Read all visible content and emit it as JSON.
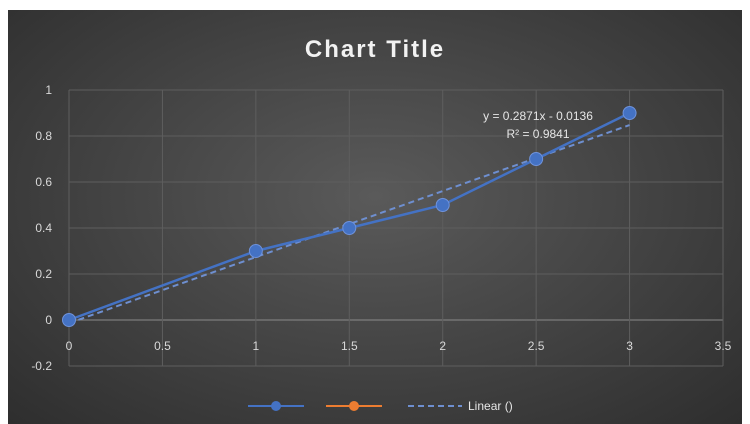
{
  "chart_data": {
    "type": "scatter",
    "title": "Chart Title",
    "xlim": [
      0,
      3.5
    ],
    "ylim": [
      -0.2,
      1
    ],
    "x_ticks": [
      "0",
      "0.5",
      "1",
      "1.5",
      "2",
      "2.5",
      "3",
      "3.5"
    ],
    "y_ticks": [
      "1",
      "0.8",
      "0.6",
      "0.4",
      "0.2",
      "0",
      "-0.2"
    ],
    "grid": true,
    "series": [
      {
        "x": [
          0,
          1,
          1.5,
          2,
          2.5,
          3
        ],
        "y": [
          0,
          0.3,
          0.4,
          0.5,
          0.7,
          0.9
        ],
        "color": "#4472c4",
        "marker": "circle",
        "line": "solid"
      },
      {
        "x": [],
        "y": [],
        "color": "#ed7d31",
        "marker": "circle",
        "line": "solid"
      }
    ],
    "trendline": {
      "type": "linear",
      "slope": 0.2871,
      "intercept": -0.0136,
      "color": "#4472c4",
      "line": "dashed",
      "equation_label": "y = 0.2871x  - 0.0136",
      "r2_label": "R² = 0.9841"
    },
    "legend": {
      "position": "bottom",
      "entries": [
        {
          "label": "",
          "color": "#4472c4",
          "style": "line-marker"
        },
        {
          "label": "",
          "color": "#ed7d31",
          "style": "line-marker"
        },
        {
          "label": "Linear ()",
          "color": "#4472c4",
          "style": "dashed"
        }
      ]
    }
  }
}
